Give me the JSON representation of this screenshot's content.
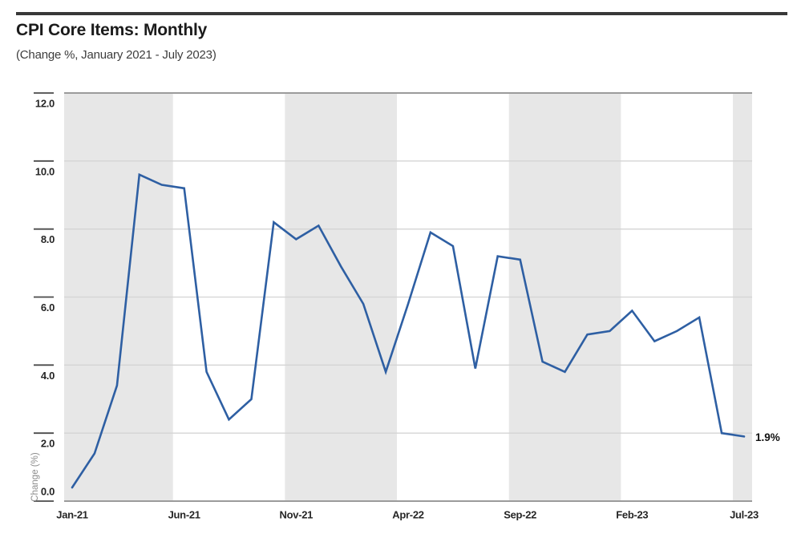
{
  "header": {
    "title": "CPI Core Items: Monthly",
    "subtitle": "(Change %, January 2021 - July 2023)"
  },
  "chart_data": {
    "type": "line",
    "title": "CPI Core Items: Monthly",
    "subtitle": "(Change %, January 2021 - July 2023)",
    "xlabel": "",
    "ylabel": "Change (%)",
    "ylim": [
      0,
      12
    ],
    "y_tick_step": 2,
    "y_tick_labels": [
      "0.0",
      "2.0",
      "4.0",
      "6.0",
      "8.0",
      "10.0",
      "12.0"
    ],
    "x": [
      "Jan-21",
      "Feb-21",
      "Mar-21",
      "Apr-21",
      "May-21",
      "Jun-21",
      "Jul-21",
      "Aug-21",
      "Sep-21",
      "Oct-21",
      "Nov-21",
      "Dec-21",
      "Jan-22",
      "Feb-22",
      "Mar-22",
      "Apr-22",
      "May-22",
      "Jun-22",
      "Jul-22",
      "Aug-22",
      "Sep-22",
      "Oct-22",
      "Nov-22",
      "Dec-22",
      "Jan-23",
      "Feb-23",
      "Mar-23",
      "Apr-23",
      "May-23",
      "Jun-23",
      "Jul-23"
    ],
    "values": [
      0.4,
      1.4,
      3.4,
      9.6,
      9.3,
      9.2,
      3.8,
      2.4,
      3.0,
      8.2,
      7.7,
      8.1,
      6.9,
      5.8,
      3.8,
      5.8,
      7.9,
      7.5,
      3.9,
      7.2,
      7.1,
      4.1,
      3.8,
      4.9,
      5.0,
      5.6,
      4.7,
      5.0,
      5.4,
      2.0,
      1.9
    ],
    "x_tick_every": 5,
    "x_tick_labels": [
      "Jan-21",
      "Jun-21",
      "Nov-21",
      "Apr-22",
      "Sep-22",
      "Feb-23",
      "Jul-23"
    ],
    "last_value_label": "1.9%",
    "legend": "none",
    "grid": "horizontal",
    "background_bands": {
      "period_months": 5,
      "note": "alternating gray shading every 5 months starting Jan-21"
    }
  },
  "style": {
    "line_color": "#2e5fa3",
    "band_color": "#e7e7e7",
    "grid_color": "#d4d4d4",
    "axis_color": "#9b9b9b",
    "tick_color": "#4a4a4a",
    "label_color": "#262626",
    "muted_color": "#8c8c8c",
    "title_color": "#1b1b1b",
    "subtitle_color": "#3d3d3d",
    "rule_color": "#383838",
    "annotation_color": "#111111"
  }
}
